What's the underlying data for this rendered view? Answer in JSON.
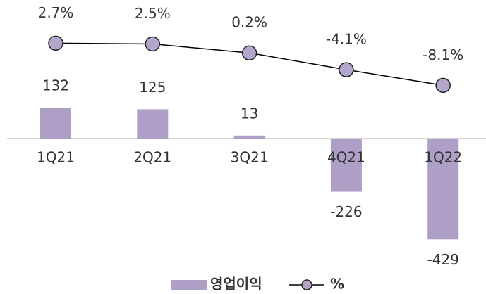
{
  "chart_data": {
    "type": "bar",
    "categories": [
      "1Q21",
      "2Q21",
      "3Q21",
      "4Q21",
      "1Q22"
    ],
    "series": [
      {
        "name": "영업이익",
        "type": "bar",
        "color": "#ae9fc7",
        "values": [
          132,
          125,
          13,
          -226,
          -429
        ]
      },
      {
        "name": "%",
        "type": "line",
        "axis": "y2",
        "color": "#000000",
        "marker_color": "#b3a5cb",
        "values": [
          2.7,
          2.5,
          0.2,
          -4.1,
          -8.1
        ],
        "value_labels": [
          "2.7%",
          "2.5%",
          "0.2%",
          "-4.1%",
          "-8.1%"
        ]
      }
    ],
    "ylim": [
      -500,
      300
    ],
    "y2lim": [
      -12,
      6
    ],
    "legend": "bottom"
  }
}
